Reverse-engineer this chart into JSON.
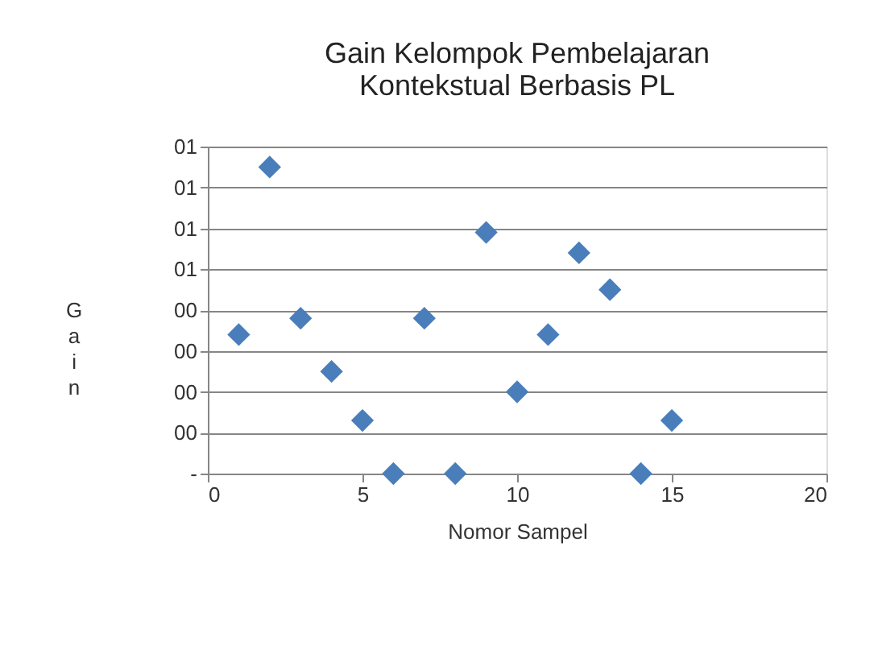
{
  "chart_data": {
    "type": "scatter",
    "title": "Gain Kelompok Pembelajaran\nKontekstual Berbasis PL",
    "xlabel": "Nomor Sampel",
    "ylabel": "Gain",
    "x": [
      1,
      2,
      3,
      4,
      5,
      6,
      7,
      8,
      9,
      10,
      11,
      12,
      13,
      14,
      15
    ],
    "series": [
      {
        "color": "#4a7ebb",
        "values": [
          0.34,
          0.75,
          0.38,
          0.25,
          0.13,
          0,
          0.38,
          0,
          0.59,
          0.2,
          0.34,
          0.54,
          0.45,
          0,
          0.13
        ]
      }
    ],
    "xlim": [
      0,
      20
    ],
    "xticks": [
      0,
      5,
      10,
      15,
      20
    ],
    "ylim": [
      0,
      0.8
    ],
    "yticks": [
      {
        "value": 0,
        "label": "-"
      },
      {
        "value": 0.1,
        "label": "00"
      },
      {
        "value": 0.2,
        "label": "00"
      },
      {
        "value": 0.3,
        "label": "00"
      },
      {
        "value": 0.4,
        "label": "00"
      },
      {
        "value": 0.5,
        "label": "01"
      },
      {
        "value": 0.6,
        "label": "01"
      },
      {
        "value": 0.7,
        "label": "01"
      },
      {
        "value": 0.8,
        "label": "01"
      }
    ],
    "grid": "y",
    "marker": "diamond",
    "legend": false
  }
}
